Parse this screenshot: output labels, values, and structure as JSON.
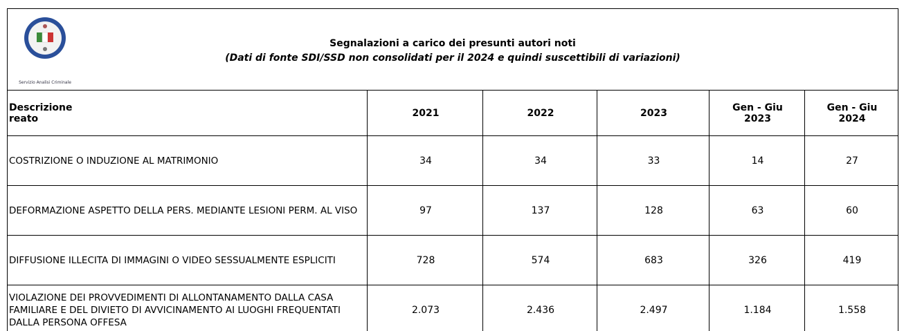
{
  "header": {
    "logo_caption": "Servizio Analisi Criminale",
    "title": "Segnalazioni a carico dei presunti autori noti",
    "subtitle": "(Dati di fonte SDI/SSD non consolidati per il 2024 e quindi suscettibili di variazioni)"
  },
  "table": {
    "columns": [
      "Descrizione reato",
      "2021",
      "2022",
      "2023",
      "Gen - Giu 2023",
      "Gen - Giu 2024"
    ],
    "rows": [
      [
        "COSTRIZIONE O INDUZIONE AL MATRIMONIO",
        "34",
        "34",
        "33",
        "14",
        "27"
      ],
      [
        "DEFORMAZIONE ASPETTO DELLA PERS. MEDIANTE LESIONI PERM. AL VISO",
        "97",
        "137",
        "128",
        "63",
        "60"
      ],
      [
        "DIFFUSIONE ILLECITA DI IMMAGINI O VIDEO SESSUALMENTE ESPLICITI",
        "728",
        "574",
        "683",
        "326",
        "419"
      ],
      [
        "VIOLAZIONE DEI PROVVEDIMENTI DI ALLONTANAMENTO DALLA CASA FAMILIARE E DEL DIVIETO DI AVVICINAMENTO AI LUOGHI FREQUENTATI DALLA PERSONA OFFESA",
        "2.073",
        "2.436",
        "2.497",
        "1.184",
        "1.558"
      ]
    ]
  }
}
